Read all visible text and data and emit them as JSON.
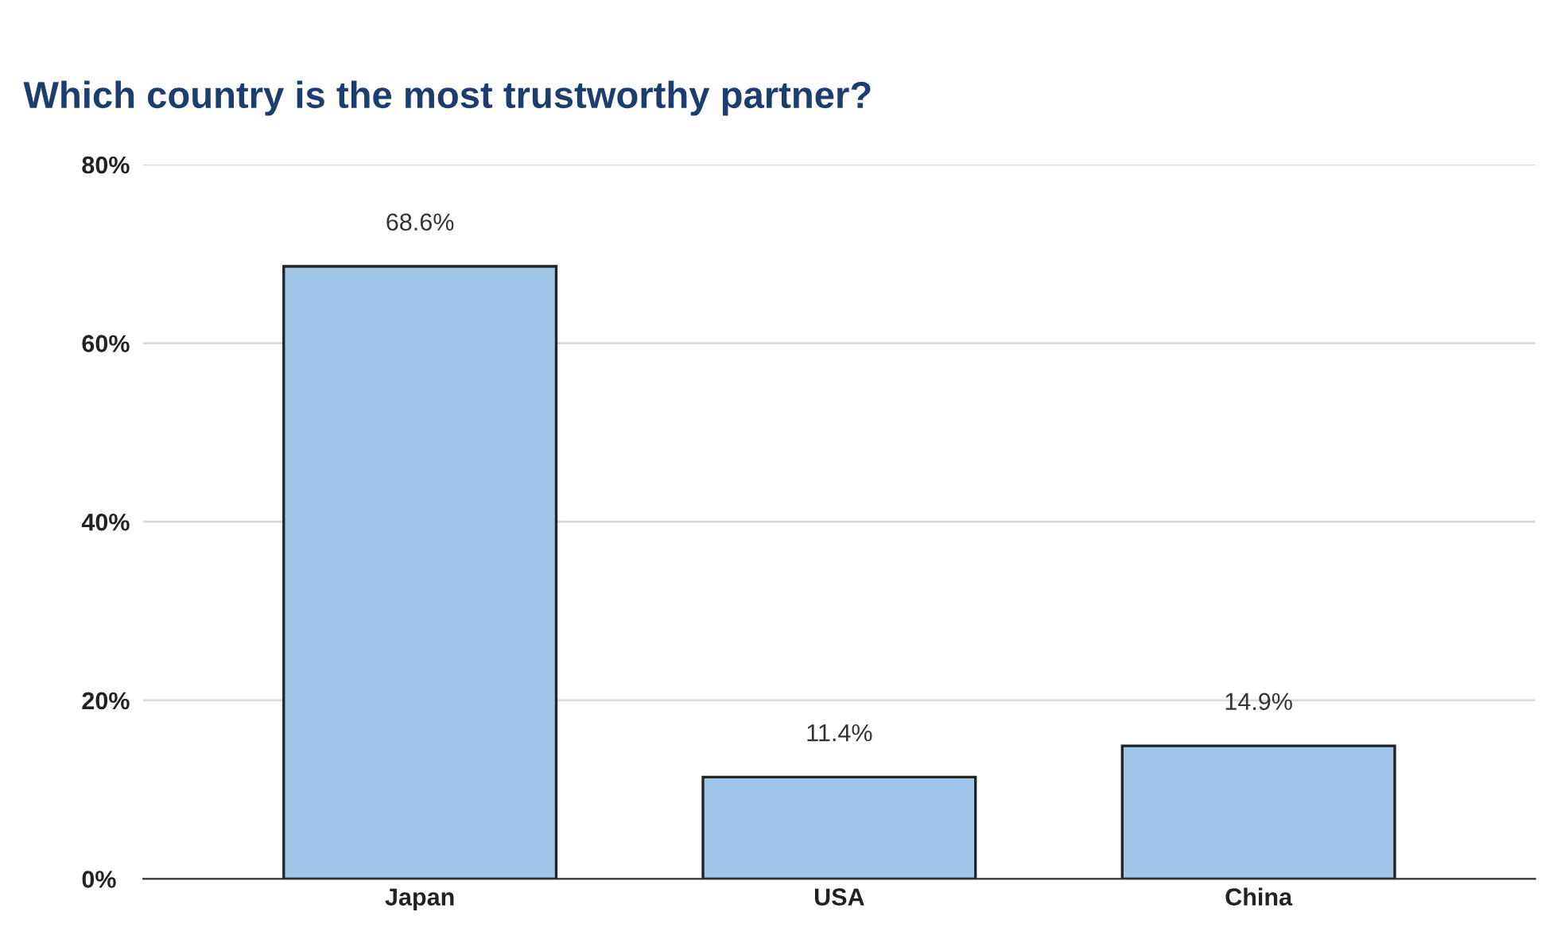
{
  "chart_data": {
    "type": "bar",
    "title": "Which country is the most trustworthy partner?",
    "categories": [
      "Japan",
      "USA",
      "China"
    ],
    "values": [
      68.6,
      11.4,
      14.9
    ],
    "value_labels": [
      "68.6%",
      "11.4%",
      "14.9%"
    ],
    "color": "#9fc5e8",
    "ylim": [
      0,
      80
    ],
    "yticks": [
      {
        "value": 0,
        "label": "0%"
      },
      {
        "value": 20,
        "label": "20%"
      },
      {
        "value": 40,
        "label": "40%"
      },
      {
        "value": 60,
        "label": "60%"
      },
      {
        "value": 80,
        "label": "80%"
      }
    ],
    "grid": "y",
    "legend": false
  }
}
